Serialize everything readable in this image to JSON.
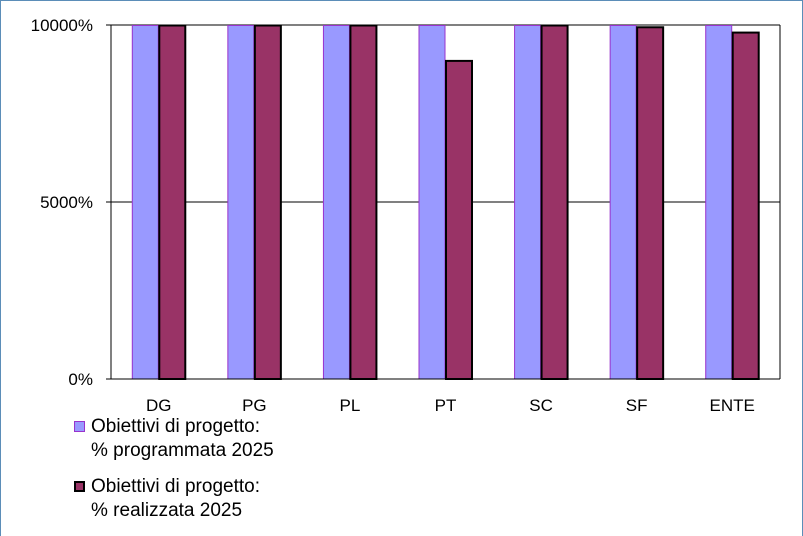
{
  "chart_data": {
    "type": "bar",
    "categories": [
      "DG",
      "PG",
      "PL",
      "PT",
      "SC",
      "SF",
      "ENTE"
    ],
    "series": [
      {
        "values": [
          10000,
          10000,
          10000,
          10000,
          10000,
          10000,
          10000
        ]
      },
      {
        "values": [
          10000,
          10000,
          10000,
          9000,
          10000,
          9950,
          9800
        ]
      }
    ],
    "y_ticks": [
      "0%",
      "5000%",
      "10000%"
    ],
    "ylim": [
      0,
      10000
    ],
    "grid": true,
    "legend_position": "bottom-left",
    "colors": {
      "series1_fill": "#9999ff",
      "series1_edge": "#9933cc",
      "series2_fill": "#993366",
      "series2_edge": "#000000"
    }
  },
  "legend": [
    {
      "line1": "Obiettivi di progetto:",
      "line2": "% programmata 2025"
    },
    {
      "line1": "Obiettivi di progetto:",
      "line2": "% realizzata 2025"
    }
  ]
}
